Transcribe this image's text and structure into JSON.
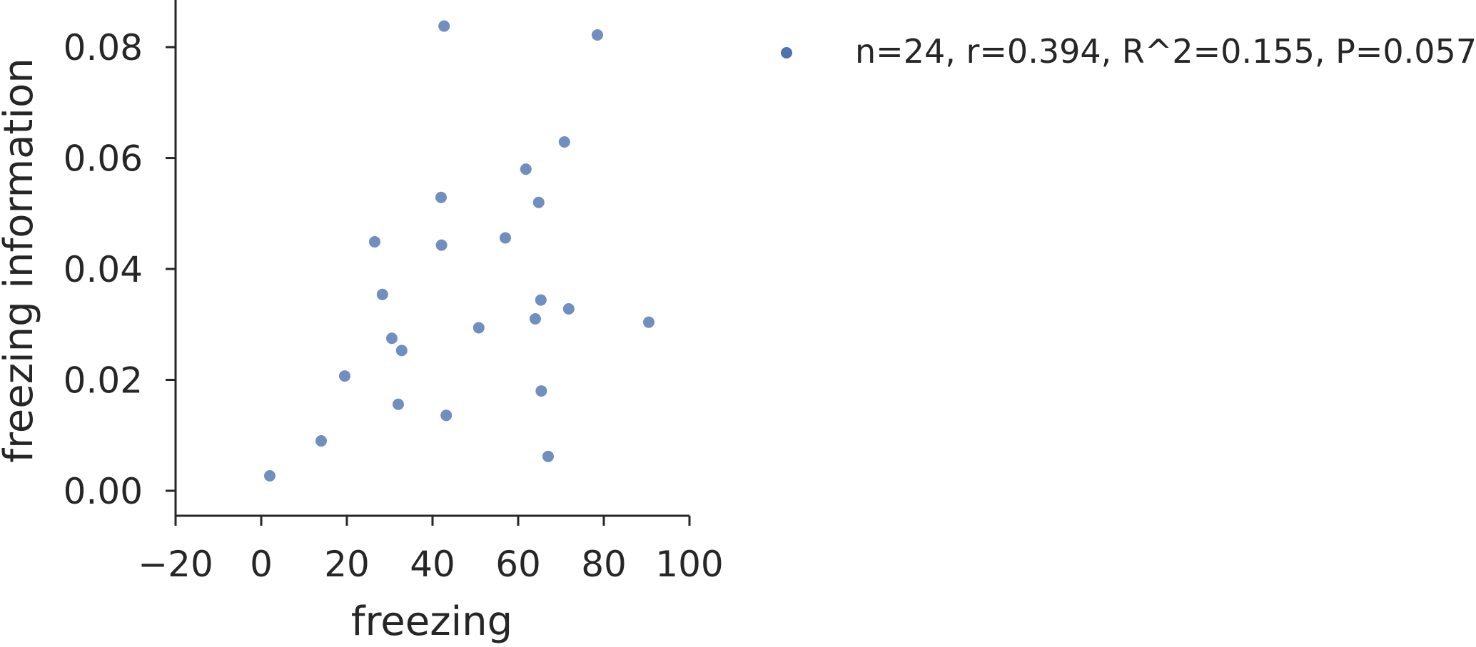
{
  "chart_data": {
    "type": "scatter",
    "title": "",
    "xlabel": "freezing",
    "ylabel": "freezing information",
    "xlim": [
      -20,
      100
    ],
    "ylim": [
      -0.0045,
      0.0885
    ],
    "xticks": [
      -20,
      0,
      20,
      40,
      60,
      80,
      100
    ],
    "xtick_labels": [
      "−20",
      "0",
      "20",
      "40",
      "60",
      "80",
      "100"
    ],
    "yticks": [
      0.0,
      0.02,
      0.04,
      0.06,
      0.08
    ],
    "ytick_labels": [
      "0.00",
      "0.02",
      "0.04",
      "0.06",
      "0.08"
    ],
    "grid": false,
    "legend_position": "top-right, outside plot",
    "series": [
      {
        "name": "n=24, r=0.394, R^2=0.155, P=0.0571",
        "color": "#4c72b0",
        "points": [
          {
            "x": 2.0,
            "y": 0.0027
          },
          {
            "x": 14.0,
            "y": 0.009
          },
          {
            "x": 19.5,
            "y": 0.0207
          },
          {
            "x": 26.5,
            "y": 0.0449
          },
          {
            "x": 28.3,
            "y": 0.0354
          },
          {
            "x": 30.5,
            "y": 0.0275
          },
          {
            "x": 32.0,
            "y": 0.0156
          },
          {
            "x": 32.8,
            "y": 0.0253
          },
          {
            "x": 42.0,
            "y": 0.0529
          },
          {
            "x": 42.1,
            "y": 0.0443
          },
          {
            "x": 42.7,
            "y": 0.0838
          },
          {
            "x": 43.2,
            "y": 0.0136
          },
          {
            "x": 50.8,
            "y": 0.0294
          },
          {
            "x": 57.0,
            "y": 0.0456
          },
          {
            "x": 61.8,
            "y": 0.058
          },
          {
            "x": 64.0,
            "y": 0.031
          },
          {
            "x": 64.8,
            "y": 0.052
          },
          {
            "x": 65.3,
            "y": 0.0344
          },
          {
            "x": 65.4,
            "y": 0.018
          },
          {
            "x": 67.0,
            "y": 0.0062
          },
          {
            "x": 70.8,
            "y": 0.0629
          },
          {
            "x": 71.8,
            "y": 0.0328
          },
          {
            "x": 78.5,
            "y": 0.0822
          },
          {
            "x": 90.5,
            "y": 0.0304
          }
        ]
      }
    ]
  }
}
